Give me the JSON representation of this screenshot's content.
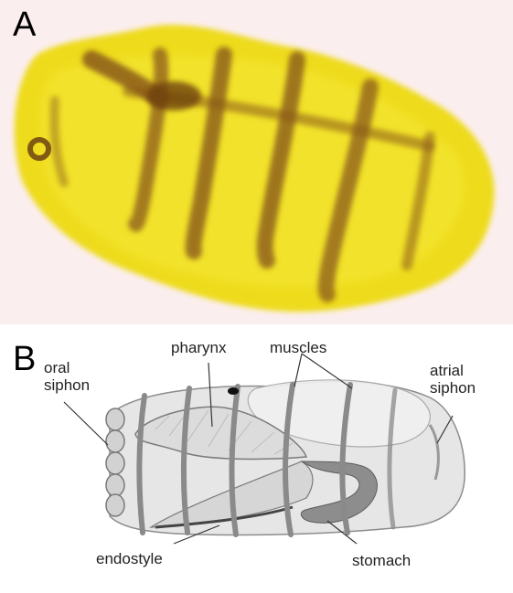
{
  "panels": {
    "a": {
      "letter": "A"
    },
    "b": {
      "letter": "B"
    }
  },
  "labels": {
    "oral_siphon": [
      "oral",
      "siphon"
    ],
    "pharynx": "pharynx",
    "muscles": "muscles",
    "atrial_siphon": [
      "atrial",
      "siphon"
    ],
    "endostyle": "endostyle",
    "stomach": "stomach"
  },
  "colors": {
    "photo_background": "#fbeeee",
    "specimen_yellow": "#f2e21c",
    "muscle_brown": "#8a5a1a",
    "diagram_gray": "#9a9a9a"
  }
}
